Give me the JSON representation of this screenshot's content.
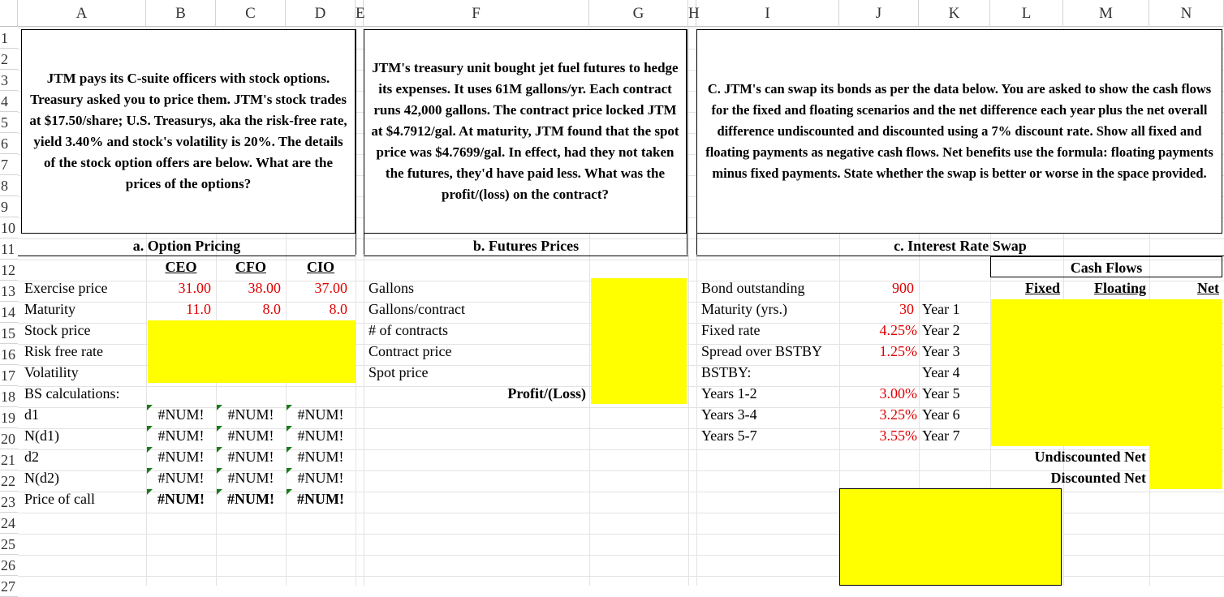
{
  "columns": [
    "A",
    "B",
    "C",
    "D",
    "E",
    "F",
    "G",
    "H",
    "I",
    "J",
    "K",
    "L",
    "M",
    "N"
  ],
  "rows": [
    "1",
    "2",
    "3",
    "4",
    "5",
    "6",
    "7",
    "8",
    "9",
    "10",
    "11",
    "12",
    "13",
    "14",
    "15",
    "16",
    "17",
    "18",
    "19",
    "20",
    "21",
    "22",
    "23",
    "24",
    "25",
    "26",
    "27"
  ],
  "box_a": "JTM pays its C-suite officers with stock options. Treasury asked you to price them. JTM's stock trades at $17.50/share; U.S. Treasurys, aka the risk-free rate, yield 3.40% and stock's volatility is 20%. The details of the stock option offers are below. What are the prices of the options?",
  "box_f": "JTM's treasury unit bought jet fuel futures to hedge its expenses. It uses 61M gallons/yr. Each contract runs 42,000 gallons. The contract price locked JTM at $4.7912/gal. At maturity, JTM found that the spot price was $4.7699/gal. In effect, had they not taken the futures, they'd have paid less. What was the profit/(loss) on the contract?",
  "box_c": "C. JTM's can swap its bonds as per the data below. You are asked to show the cash flows for the fixed and floating scenarios and the net difference each year plus the net overall difference undiscounted and discounted using a 7% discount rate. Show all fixed and floating payments as negative cash flows. Net benefits use the formula: floating payments minus fixed payments. State whether the swap is better or worse in the space provided.",
  "section_a": {
    "title": "a. Option Pricing",
    "headers": [
      "CEO",
      "CFO",
      "CIO"
    ],
    "labels": [
      "Exercise price",
      "Maturity",
      "Stock price",
      "Risk free rate",
      "Volatility",
      "BS calculations:",
      "d1",
      "N(d1)",
      "d2",
      "N(d2)",
      "Price of call"
    ],
    "exercise": [
      "31.00",
      "38.00",
      "37.00"
    ],
    "maturity": [
      "11.0",
      "8.0",
      "8.0"
    ],
    "num": "#NUM!"
  },
  "section_b": {
    "title": "b. Futures Prices",
    "labels": [
      "Gallons",
      "Gallons/contract",
      "# of contracts",
      "Contract price",
      "Spot price"
    ],
    "profit_label": "Profit/(Loss)"
  },
  "section_c": {
    "title": "c. Interest Rate Swap",
    "labels": [
      "Bond outstanding",
      "Maturity (yrs.)",
      "Fixed rate",
      "Spread over BSTBY",
      "BSTBY:",
      "Years 1-2",
      "Years 3-4",
      "Years 5-7"
    ],
    "values": [
      "900",
      "30",
      "4.25%",
      "1.25%",
      "",
      "3.00%",
      "3.25%",
      "3.55%"
    ],
    "years": [
      "Year 1",
      "Year 2",
      "Year 3",
      "Year 4",
      "Year 5",
      "Year 6",
      "Year 7"
    ],
    "cash_flows": "Cash Flows",
    "fixed": "Fixed",
    "floating": "Floating",
    "net": "Net",
    "undiscounted": "Undiscounted Net",
    "discounted": "Discounted Net"
  },
  "colors": {
    "highlight": "#ffff00",
    "input_red": "#e00000",
    "error_marker": "#1a7a1a"
  }
}
